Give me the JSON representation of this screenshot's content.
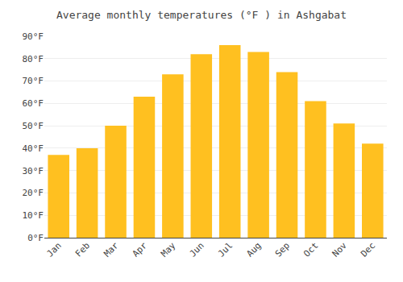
{
  "chart_data": {
    "type": "bar",
    "title": "Average monthly temperatures (°F ) in Ashgabat",
    "categories": [
      "Jan",
      "Feb",
      "Mar",
      "Apr",
      "May",
      "Jun",
      "Jul",
      "Aug",
      "Sep",
      "Oct",
      "Nov",
      "Dec"
    ],
    "values": [
      37,
      40,
      50,
      63,
      73,
      82,
      86,
      83,
      74,
      61,
      51,
      42
    ],
    "color": "#FFC020",
    "ylim": [
      0,
      90
    ],
    "yticks": [
      {
        "value": 0,
        "label": "0°F"
      },
      {
        "value": 10,
        "label": "10°F"
      },
      {
        "value": 20,
        "label": "20°F"
      },
      {
        "value": 30,
        "label": "30°F"
      },
      {
        "value": 40,
        "label": "40°F"
      },
      {
        "value": 50,
        "label": "50°F"
      },
      {
        "value": 60,
        "label": "60°F"
      },
      {
        "value": 70,
        "label": "70°F"
      },
      {
        "value": 80,
        "label": "80°F"
      },
      {
        "value": 90,
        "label": "90°F"
      }
    ],
    "grid": true
  }
}
